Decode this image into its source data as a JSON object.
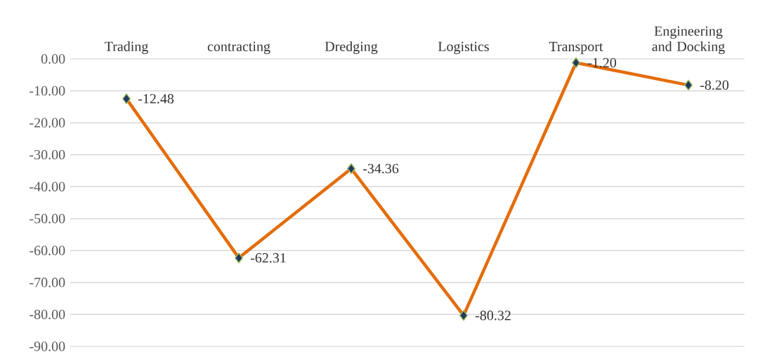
{
  "chart_data": {
    "type": "line",
    "categories": [
      "Trading",
      "contracting",
      "Dredging",
      "Logistics",
      "Transport",
      "Engineering and Docking"
    ],
    "series": [
      {
        "color": "#e46c0a",
        "values": [
          -12.48,
          -62.31,
          -34.36,
          -80.32,
          -1.2,
          -8.2
        ],
        "value_labels": [
          "-12.48",
          "-62.31",
          "-34.36",
          "-80.32",
          "-1.20",
          "-8.20"
        ]
      }
    ],
    "ylim": [
      -90,
      0
    ],
    "yticks": [
      {
        "value": 0,
        "label": "0.00"
      },
      {
        "value": -10,
        "label": "-10.00"
      },
      {
        "value": -20,
        "label": "-20.00"
      },
      {
        "value": -30,
        "label": "-30.00"
      },
      {
        "value": -40,
        "label": "-40.00"
      },
      {
        "value": -50,
        "label": "-50.00"
      },
      {
        "value": -60,
        "label": "-60.00"
      },
      {
        "value": -70,
        "label": "-70.00"
      },
      {
        "value": -80,
        "label": "-80.00"
      },
      {
        "value": -90,
        "label": "-90.00"
      }
    ],
    "grid": "y",
    "marker": "diamond",
    "line_style": "solid"
  }
}
